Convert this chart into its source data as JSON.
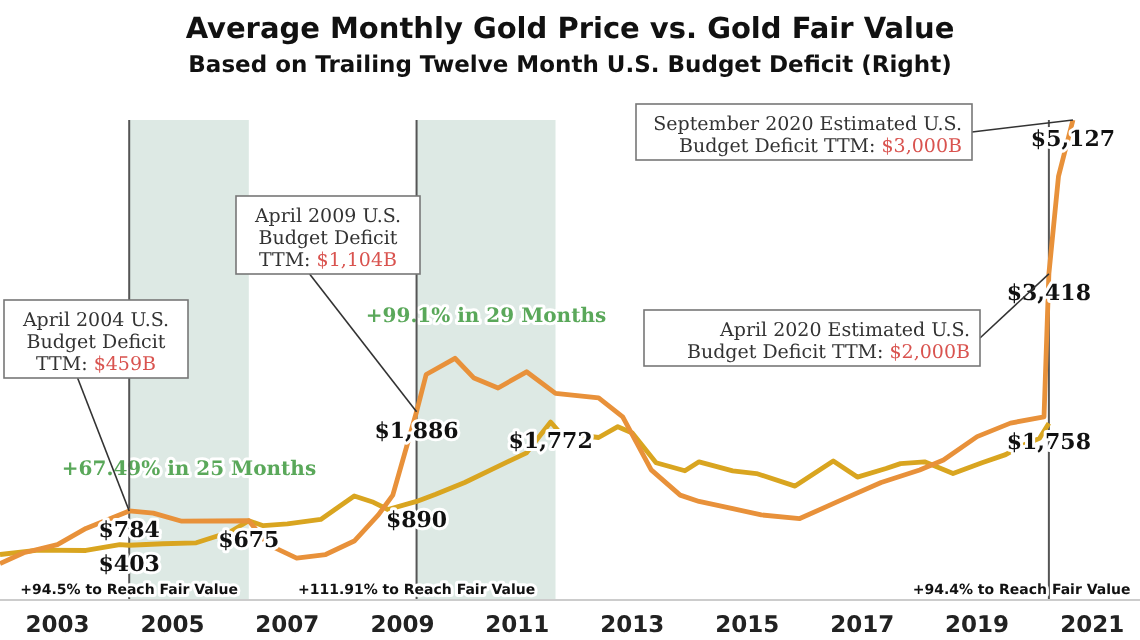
{
  "chart_data": {
    "type": "line",
    "title": "Average Monthly Gold Price vs. Gold Fair Value",
    "subtitle": "Based on Trailing Twelve Month U.S. Budget Deficit (Right)",
    "tick_labels": "x",
    "xlim": [
      "2002-01",
      "2021-11"
    ],
    "xticks": [
      "2003",
      "2005",
      "2007",
      "2009",
      "2011",
      "2013",
      "2015",
      "2017",
      "2019",
      "2021"
    ],
    "series": [
      {
        "color": "#d9a520",
        "x": [
          "2002-01",
          "2002-09",
          "2003-07",
          "2004-02",
          "2004-04",
          "2004-11",
          "2005-06",
          "2006-01",
          "2006-05",
          "2006-08",
          "2007-01",
          "2007-08",
          "2008-03",
          "2008-07",
          "2008-10",
          "2009-04",
          "2009-08",
          "2010-02",
          "2010-09",
          "2011-03",
          "2011-08",
          "2011-10",
          "2012-06",
          "2012-10",
          "2013-01",
          "2013-06",
          "2013-12",
          "2014-03",
          "2014-10",
          "2015-03",
          "2015-11",
          "2016-07",
          "2016-12",
          "2017-06",
          "2017-09",
          "2018-02",
          "2018-08",
          "2019-02",
          "2019-07",
          "2019-10",
          "2020-02",
          "2020-04"
        ],
        "values": [
          300,
          350,
          345,
          410,
          403,
          420,
          430,
          550,
          675,
          620,
          640,
          690,
          950,
          880,
          800,
          890,
          970,
          1100,
          1280,
          1430,
          1772,
          1650,
          1600,
          1720,
          1650,
          1320,
          1230,
          1330,
          1230,
          1200,
          1060,
          1340,
          1160,
          1255,
          1310,
          1330,
          1200,
          1320,
          1410,
          1500,
          1590,
          1758
        ],
        "value_labels": [
          null,
          null,
          null,
          null,
          "$403",
          null,
          null,
          null,
          "$675",
          null,
          null,
          null,
          null,
          null,
          null,
          "$890",
          null,
          null,
          null,
          null,
          "$1,772",
          null,
          null,
          null,
          null,
          null,
          null,
          null,
          null,
          null,
          null,
          null,
          null,
          null,
          null,
          null,
          null,
          null,
          null,
          null,
          null,
          "$1,758"
        ]
      },
      {
        "color": "#e8913a",
        "x": [
          "2002-01",
          "2002-06",
          "2003-01",
          "2003-07",
          "2004-04",
          "2004-09",
          "2005-03",
          "2006-05",
          "2006-09",
          "2007-03",
          "2007-09",
          "2008-03",
          "2008-08",
          "2008-11",
          "2009-04",
          "2009-06",
          "2009-12",
          "2010-04",
          "2010-09",
          "2011-03",
          "2011-09",
          "2012-06",
          "2012-11",
          "2013-05",
          "2013-11",
          "2014-03",
          "2014-10",
          "2015-04",
          "2015-12",
          "2016-08",
          "2017-05",
          "2018-01",
          "2018-06",
          "2019-01",
          "2019-08",
          "2020-03",
          "2020-04",
          "2020-06",
          "2020-09"
        ],
        "values": [
          200,
          320,
          410,
          590,
          784,
          760,
          670,
          675,
          410,
          260,
          300,
          450,
          740,
          960,
          1886,
          2300,
          2480,
          2260,
          2150,
          2330,
          2090,
          2040,
          1830,
          1240,
          960,
          890,
          810,
          740,
          700,
          890,
          1100,
          1240,
          1350,
          1610,
          1760,
          1830,
          3418,
          4500,
          5127
        ],
        "value_labels": [
          null,
          null,
          null,
          null,
          "$784",
          null,
          null,
          null,
          null,
          null,
          null,
          null,
          null,
          null,
          "$1,886",
          null,
          null,
          null,
          null,
          null,
          null,
          null,
          null,
          null,
          null,
          null,
          null,
          null,
          null,
          null,
          null,
          null,
          null,
          null,
          null,
          null,
          "$3,418",
          null,
          "$5,127"
        ]
      }
    ],
    "ref_lines": [
      {
        "axis": "x",
        "value": "2004-04",
        "label": "+94.5% to Reach Fair Value",
        "color": "#555555"
      },
      {
        "axis": "x",
        "value": "2009-04",
        "label": "+111.91% to Reach Fair Value",
        "color": "#555555"
      },
      {
        "axis": "x",
        "value": "2020-04",
        "label": "+94.4% to Reach Fair Value",
        "color": "#555555"
      }
    ],
    "bands": [
      {
        "axis": "x",
        "from": "2004-04",
        "to": "2006-05",
        "label": "+67.49% in 25 Months",
        "color": "#dde9e4"
      },
      {
        "axis": "x",
        "from": "2009-04",
        "to": "2011-09",
        "label": "+99.1% in 29 Months",
        "color": "#dde9e4"
      }
    ],
    "annotations": [
      {
        "text": "April 2004 U.S. Budget Deficit TTM: $459B",
        "x": "2004-04",
        "y": 784
      },
      {
        "text": "April 2009 U.S. Budget Deficit TTM: $1,104B",
        "x": "2009-04",
        "y": 1886
      },
      {
        "text": "April 2020 Estimated U.S. Budget Deficit TTM: $2,000B",
        "x": "2020-04",
        "y": 3418
      },
      {
        "text": "September 2020 Estimated U.S. Budget Deficit TTM: $3,000B",
        "x": "2020-09",
        "y": 5127
      }
    ]
  }
}
